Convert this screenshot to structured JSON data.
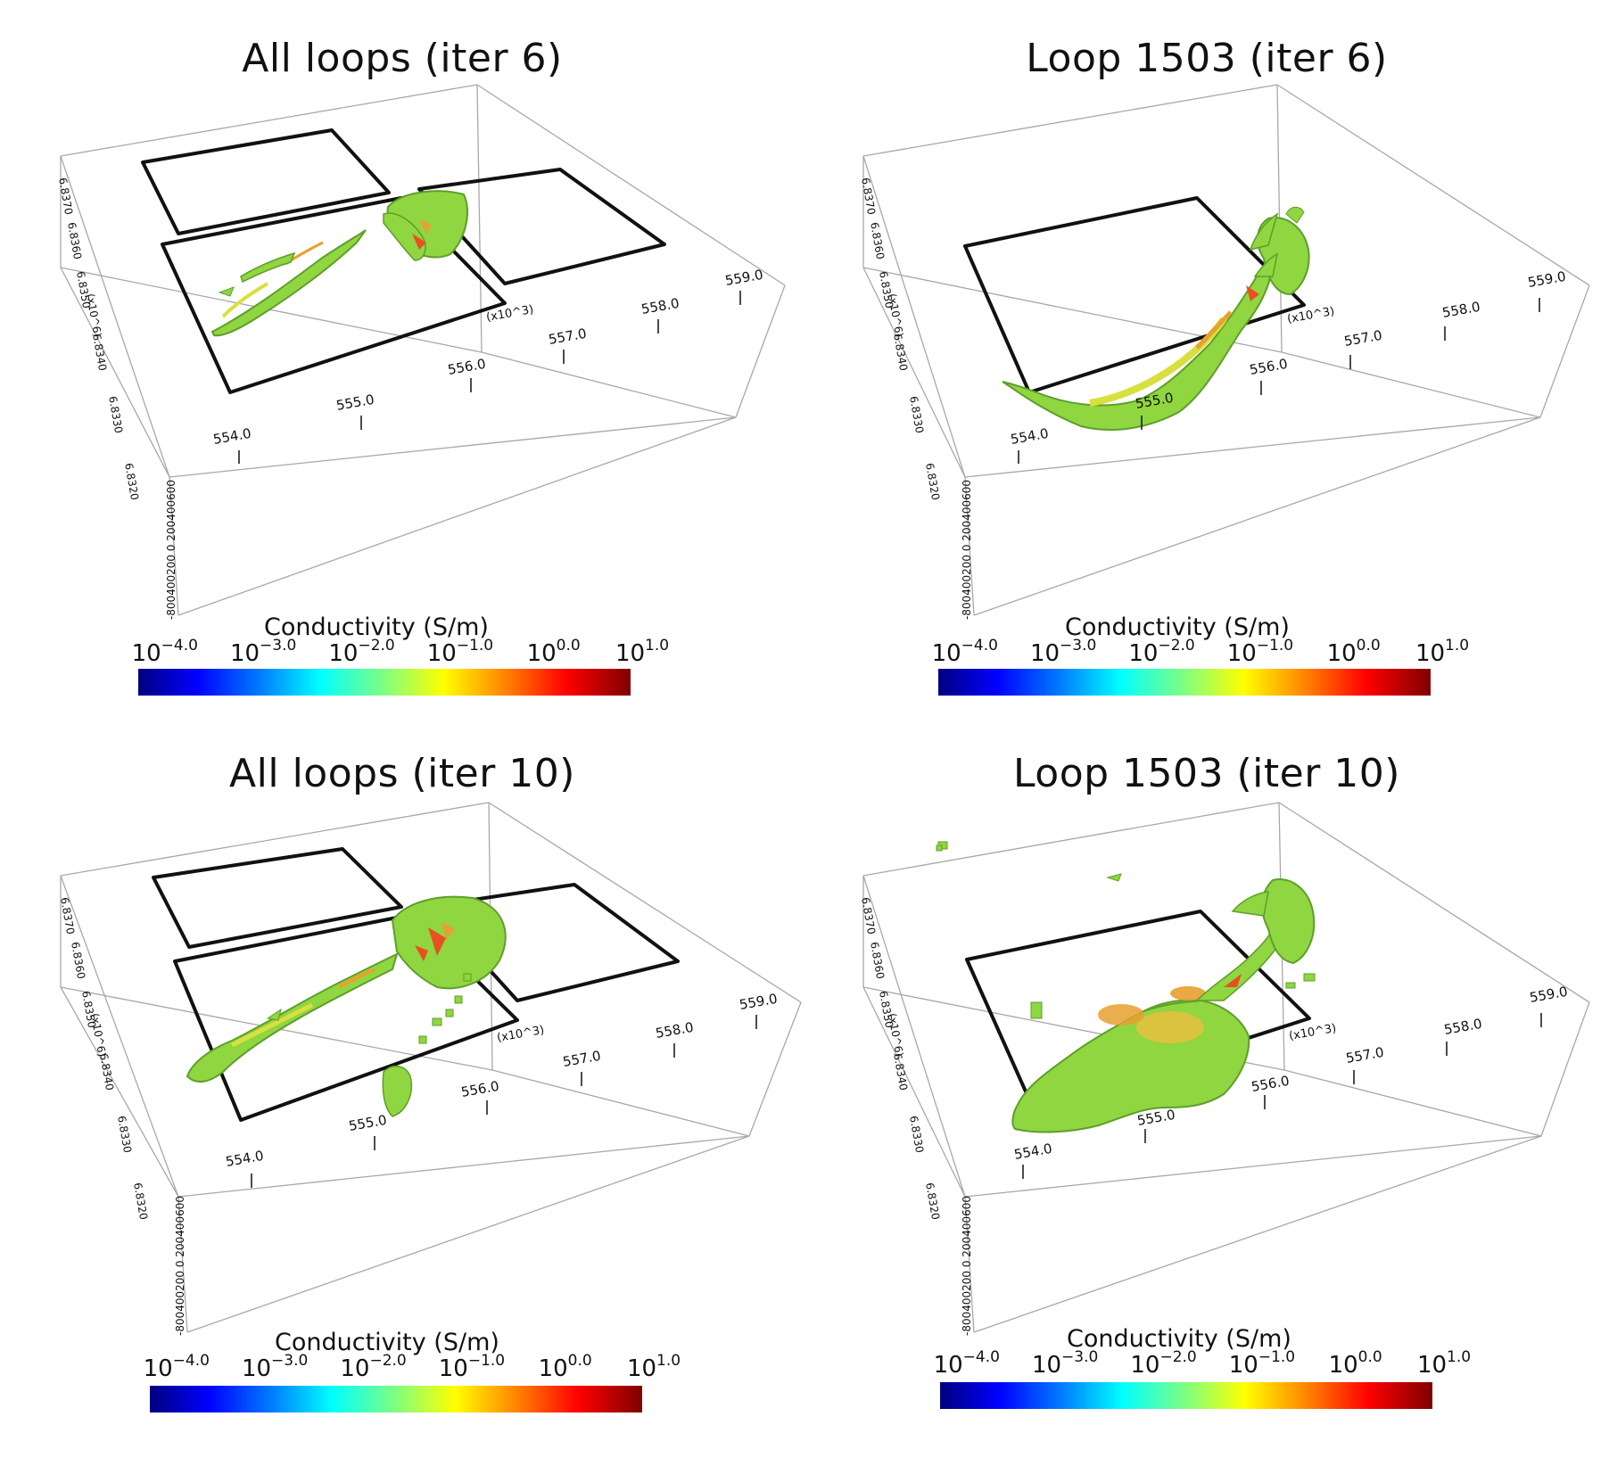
{
  "panels": [
    {
      "title": "All loops (iter 6)",
      "variant": "all-6"
    },
    {
      "title": "Loop 1503 (iter 6)",
      "variant": "loop-6"
    },
    {
      "title": "All loops (iter 10)",
      "variant": "all-10"
    },
    {
      "title": "Loop 1503 (iter 10)",
      "variant": "loop-10"
    }
  ],
  "colorbar": {
    "title": "Conductivity (S/m)",
    "tick_base": "10",
    "tick_exponents": [
      "−4.0",
      "−3.0",
      "−2.0",
      "−1.0",
      "0.0",
      "1.0"
    ]
  },
  "axes": {
    "x_ticks": [
      "554.0",
      "555.0",
      "556.0",
      "557.0",
      "558.0",
      "559.0"
    ],
    "x_scale_label": "(x10^3)",
    "y_ticks": [
      "6.8320",
      "6.8330",
      "6.8340",
      "6.8350",
      "6.8360",
      "6.8370"
    ],
    "y_scale_label": "(x10^6)",
    "z_ticks_label": "-800400200 0 200400600"
  },
  "colors": {
    "voxel_green": "#8fd640",
    "voxel_dark": "#5e9e2a",
    "voxel_yellow": "#d8e040",
    "voxel_orange": "#e8a030",
    "voxel_red": "#e85020",
    "loop_outline": "#111111",
    "box_line": "#a8a8a8"
  }
}
